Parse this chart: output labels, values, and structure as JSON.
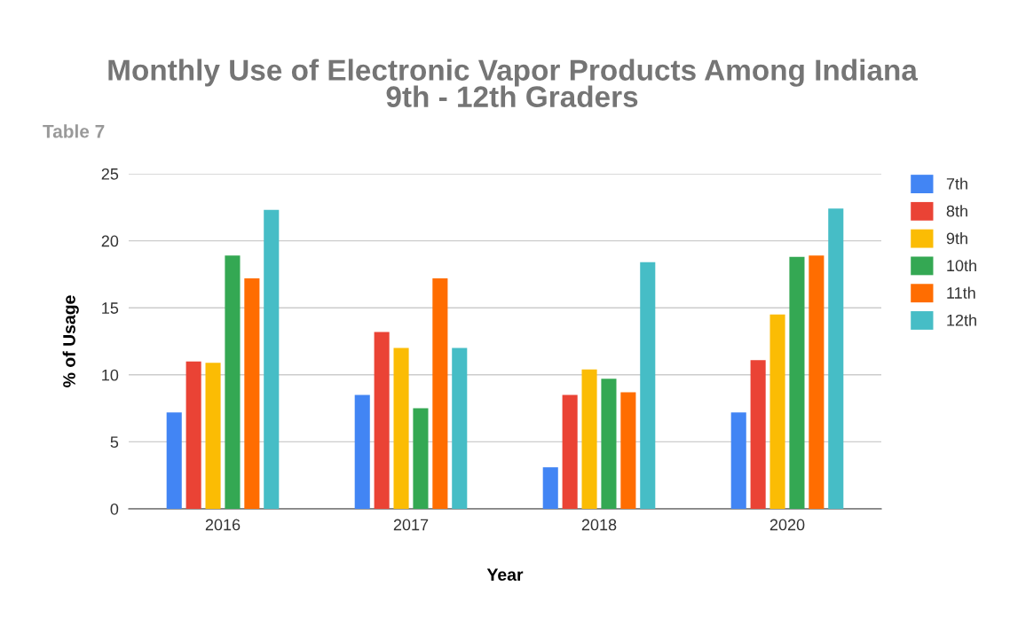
{
  "chart_data": {
    "type": "bar",
    "title": "Monthly Use of Electronic Vapor Products Among Indiana\n9th - 12th Graders",
    "annotations": [
      "Table 7"
    ],
    "xlabel": "Year",
    "ylabel": "% of Usage",
    "categories": [
      "2016",
      "2017",
      "2018",
      "2020"
    ],
    "series": [
      {
        "name": "7th",
        "color": "#4285f4",
        "values": [
          7.2,
          8.5,
          3.1,
          7.2
        ]
      },
      {
        "name": "8th",
        "color": "#ea4335",
        "values": [
          11.0,
          13.2,
          8.5,
          11.1
        ]
      },
      {
        "name": "9th",
        "color": "#fbbc04",
        "values": [
          10.9,
          12.0,
          10.4,
          14.5
        ]
      },
      {
        "name": "10th",
        "color": "#34a853",
        "values": [
          18.9,
          7.5,
          9.7,
          18.8
        ]
      },
      {
        "name": "11th",
        "color": "#ff6d01",
        "values": [
          17.2,
          17.2,
          8.7,
          18.9
        ]
      },
      {
        "name": "12th",
        "color": "#46bdc6",
        "values": [
          22.3,
          12.0,
          18.4,
          22.4
        ]
      }
    ],
    "ylim": [
      0,
      25
    ],
    "yticks": [
      0,
      5,
      10,
      15,
      20,
      25
    ],
    "grid": "y",
    "legend": "right"
  }
}
